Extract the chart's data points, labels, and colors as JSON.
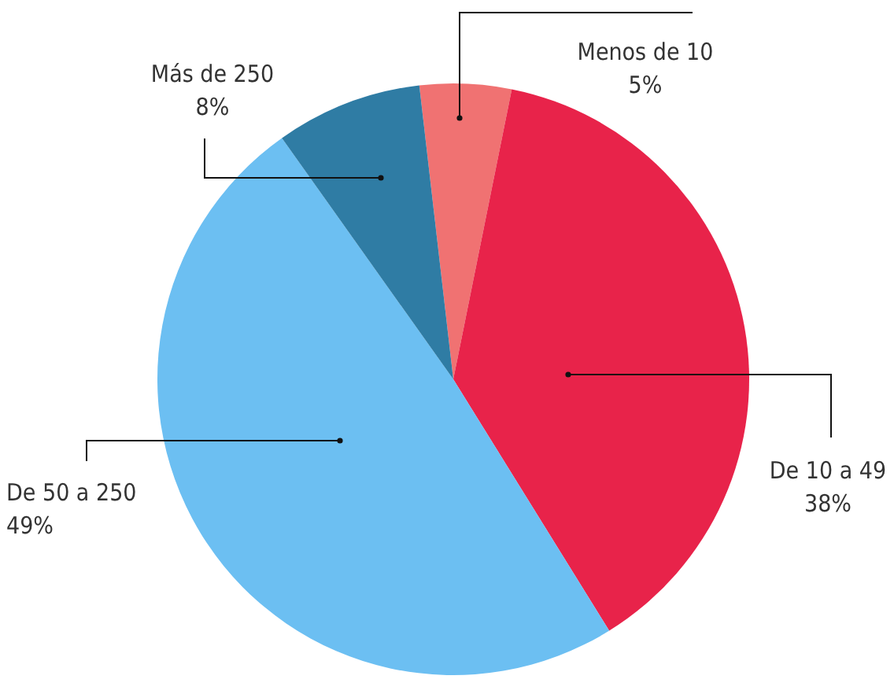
{
  "chart_data": {
    "type": "pie",
    "categories": [
      "Menos de 10",
      "De 10 a 49",
      "De 50 a 250",
      "Más de 250"
    ],
    "values": [
      5,
      38,
      49,
      8
    ],
    "colors": [
      "#f07272",
      "#e8234a",
      "#6cbff2",
      "#2f7ca4"
    ],
    "value_labels": [
      "5%",
      "38%",
      "49%",
      "8%"
    ]
  }
}
